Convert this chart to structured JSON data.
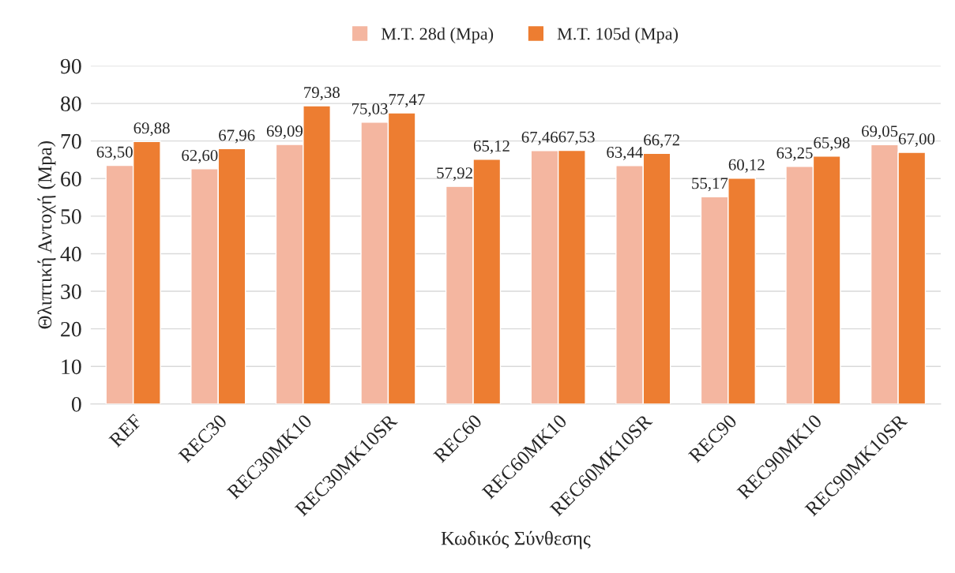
{
  "chart_data": {
    "type": "bar",
    "xlabel": "Κωδικός Σύνθεσης",
    "ylabel": "Θλιπτική Αντοχή (Mpa)",
    "categories": [
      "REF",
      "REC30",
      "REC30MK10",
      "REC30MK10SR",
      "REC60",
      "REC60MK10",
      "REC60MK10SR",
      "REC90",
      "REC90MK10",
      "REC90MK10SR"
    ],
    "series": [
      {
        "name": "M.T. 28d (Mpa)",
        "color": "#f4b6a0",
        "values": [
          63.5,
          62.6,
          69.09,
          75.03,
          57.92,
          67.46,
          63.44,
          55.17,
          63.25,
          69.05
        ],
        "value_labels": [
          "63,50",
          "62,60",
          "69,09",
          "75,03",
          "57,92",
          "67,46",
          "63,44",
          "55,17",
          "63,25",
          "69,05"
        ]
      },
      {
        "name": "M.T. 105d (Mpa)",
        "color": "#ed7d31",
        "values": [
          69.88,
          67.96,
          79.38,
          77.47,
          65.12,
          67.53,
          66.72,
          60.12,
          65.98,
          67.0
        ],
        "value_labels": [
          "69,88",
          "67,96",
          "79,38",
          "77,47",
          "65,12",
          "67,53",
          "66,72",
          "60,12",
          "65,98",
          "67,00"
        ]
      }
    ],
    "ylim": [
      0,
      90
    ],
    "yticks": [
      0,
      10,
      20,
      30,
      40,
      50,
      60,
      70,
      80,
      90
    ],
    "grid": "y",
    "legend": "top"
  }
}
